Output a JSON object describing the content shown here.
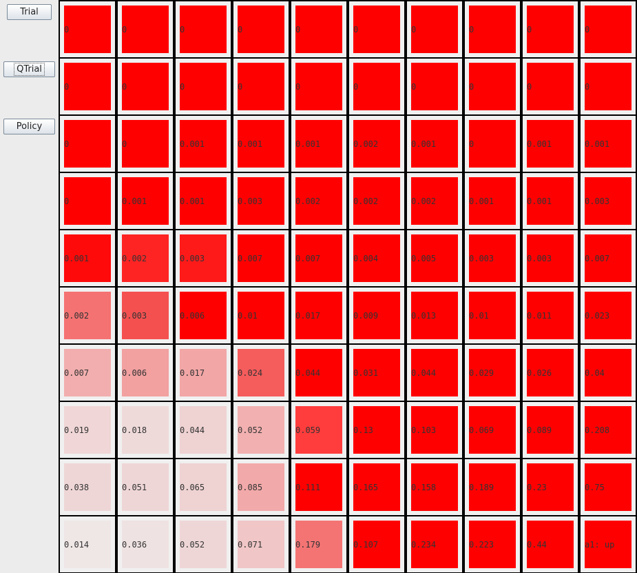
{
  "buttons": {
    "trial": "Trial",
    "qtrial": "QTrial",
    "policy": "Policy"
  },
  "grid": {
    "rows": [
      [
        "0",
        "0",
        "0",
        "0",
        "0",
        "0",
        "0",
        "0",
        "0",
        "0"
      ],
      [
        "0",
        "0",
        "0",
        "0",
        "0",
        "0",
        "0",
        "0",
        "0",
        "0"
      ],
      [
        "0",
        "0",
        "0.001",
        "0.001",
        "0.001",
        "0.002",
        "0.001",
        "0",
        "0.001",
        "0.001"
      ],
      [
        "0",
        "0.001",
        "0.001",
        "0.003",
        "0.002",
        "0.002",
        "0.002",
        "0.001",
        "0.001",
        "0.003"
      ],
      [
        "0.001",
        "0.002",
        "0.003",
        "0.007",
        "0.007",
        "0.004",
        "0.005",
        "0.003",
        "0.003",
        "0.007"
      ],
      [
        "0.002",
        "0.003",
        "0.006",
        "0.01",
        "0.017",
        "0.009",
        "0.013",
        "0.01",
        "0.011",
        "0.023"
      ],
      [
        "0.007",
        "0.006",
        "0.017",
        "0.024",
        "0.044",
        "0.031",
        "0.044",
        "0.029",
        "0.026",
        "0.04"
      ],
      [
        "0.019",
        "0.018",
        "0.044",
        "0.052",
        "0.059",
        "0.13",
        "0.103",
        "0.069",
        "0.089",
        "0.208"
      ],
      [
        "0.038",
        "0.051",
        "0.065",
        "0.085",
        "0.111",
        "0.165",
        "0.158",
        "0.189",
        "0.23",
        "0.75"
      ],
      [
        "0.014",
        "0.036",
        "0.052",
        "0.071",
        "0.179",
        "0.107",
        "0.234",
        "0.223",
        "0.44",
        "a1: up"
      ]
    ],
    "colors": [
      [
        "#ff0000",
        "#ff0000",
        "#ff0000",
        "#ff0000",
        "#ff0000",
        "#ff0000",
        "#ff0000",
        "#ff0000",
        "#ff0000",
        "#ff0000"
      ],
      [
        "#ff0000",
        "#ff0000",
        "#ff0000",
        "#ff0000",
        "#ff0000",
        "#ff0000",
        "#ff0000",
        "#ff0000",
        "#ff0000",
        "#ff0000"
      ],
      [
        "#ff0000",
        "#ff0000",
        "#ff0000",
        "#ff0000",
        "#ff0000",
        "#ff0000",
        "#ff0000",
        "#ff0000",
        "#ff0000",
        "#ff0000"
      ],
      [
        "#ff0000",
        "#ff0000",
        "#ff0000",
        "#ff0000",
        "#ff0000",
        "#ff0000",
        "#ff0000",
        "#ff0000",
        "#ff0000",
        "#ff0000"
      ],
      [
        "#ff0a0a",
        "#ff2424",
        "#ff1a1a",
        "#ff0000",
        "#ff0000",
        "#ff0000",
        "#ff0000",
        "#ff0000",
        "#ff0000",
        "#ff0000"
      ],
      [
        "#f57272",
        "#f55050",
        "#ff0000",
        "#ff0000",
        "#ff0000",
        "#ff0000",
        "#ff0000",
        "#ff0000",
        "#ff0000",
        "#ff0000"
      ],
      [
        "#f2aeae",
        "#f2a0a0",
        "#f2a6a6",
        "#f55c5c",
        "#ff0000",
        "#ff0000",
        "#ff0000",
        "#ff0000",
        "#ff0000",
        "#ff0000"
      ],
      [
        "#f0d6d6",
        "#efdada",
        "#efd2d2",
        "#f2b0b0",
        "#ff3d3d",
        "#ff0000",
        "#ff0000",
        "#ff0000",
        "#ff0000",
        "#ff0000"
      ],
      [
        "#efd6d6",
        "#efd6d6",
        "#efd2d2",
        "#f2a9a9",
        "#ff0000",
        "#ff0000",
        "#ff0000",
        "#ff0000",
        "#ff0000",
        "#ff0000"
      ],
      [
        "#efe6e6",
        "#efe2e2",
        "#efd6d6",
        "#f0c6c6",
        "#f47474",
        "#ff0000",
        "#ff0000",
        "#ff0000",
        "#ff0000",
        "#ff0000"
      ]
    ]
  }
}
